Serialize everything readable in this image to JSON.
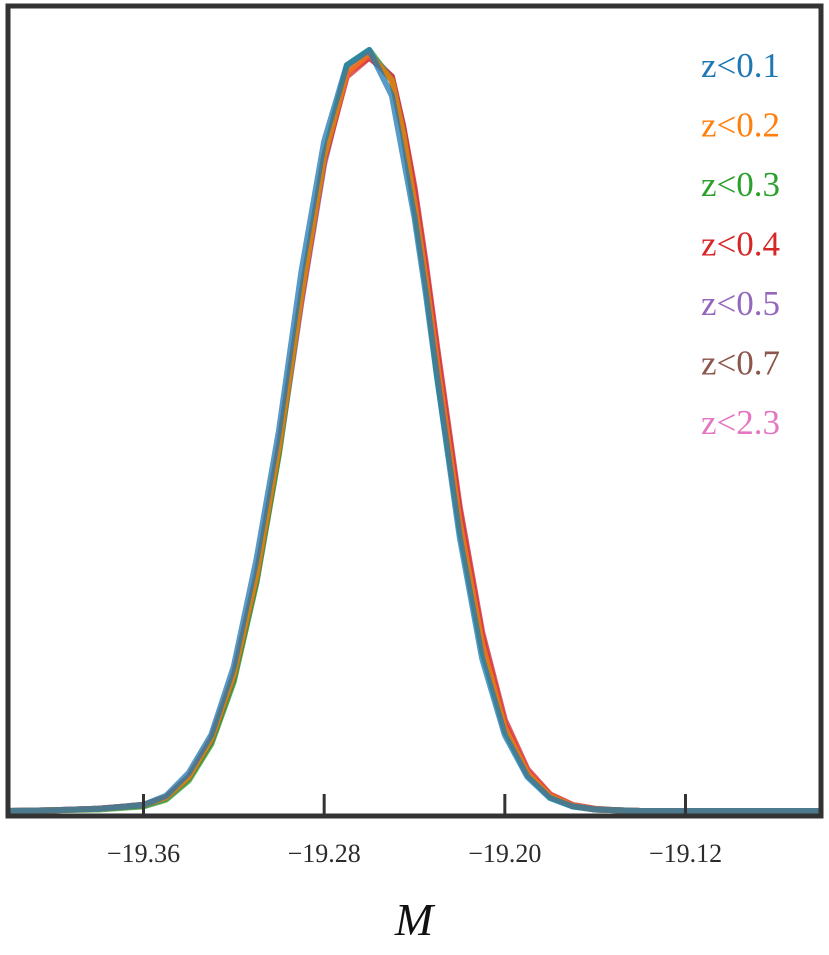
{
  "chart_data": {
    "type": "line",
    "title": "",
    "xlabel": "M",
    "ylabel": "",
    "xlim": [
      -19.42,
      -19.06
    ],
    "ylim": [
      0,
      1.05
    ],
    "xticks": [
      -19.36,
      -19.28,
      -19.2,
      -19.12
    ],
    "xtick_labels": [
      "−19.36",
      "−19.28",
      "−19.20",
      "−19.12"
    ],
    "grid": false,
    "legend_position": "top-right",
    "x": [
      -19.42,
      -19.4,
      -19.38,
      -19.36,
      -19.35,
      -19.34,
      -19.33,
      -19.32,
      -19.31,
      -19.3,
      -19.29,
      -19.28,
      -19.27,
      -19.26,
      -19.25,
      -19.245,
      -19.24,
      -19.235,
      -19.23,
      -19.22,
      -19.21,
      -19.2,
      -19.19,
      -19.18,
      -19.17,
      -19.16,
      -19.15,
      -19.14,
      -19.12,
      -19.1,
      -19.08,
      -19.06
    ],
    "series": [
      {
        "name": "z<0.1",
        "color": "#1f77b4",
        "values": [
          0,
          0.001,
          0.003,
          0.008,
          0.02,
          0.05,
          0.1,
          0.19,
          0.33,
          0.5,
          0.71,
          0.88,
          0.98,
          1.0,
          0.94,
          0.86,
          0.78,
          0.68,
          0.57,
          0.36,
          0.2,
          0.1,
          0.045,
          0.017,
          0.006,
          0.002,
          0.001,
          0,
          0,
          0,
          0,
          0
        ]
      },
      {
        "name": "z<0.2",
        "color": "#ff7f0e",
        "values": [
          0,
          0.001,
          0.003,
          0.008,
          0.018,
          0.045,
          0.095,
          0.18,
          0.31,
          0.48,
          0.68,
          0.86,
          0.97,
          0.995,
          0.96,
          0.89,
          0.8,
          0.7,
          0.59,
          0.38,
          0.22,
          0.11,
          0.05,
          0.02,
          0.007,
          0.002,
          0.001,
          0,
          0,
          0,
          0,
          0
        ]
      },
      {
        "name": "z<0.3",
        "color": "#2ca02c",
        "values": [
          0,
          0.001,
          0.002,
          0.006,
          0.015,
          0.04,
          0.088,
          0.17,
          0.3,
          0.47,
          0.68,
          0.86,
          0.98,
          1.0,
          0.96,
          0.89,
          0.79,
          0.69,
          0.57,
          0.37,
          0.21,
          0.105,
          0.047,
          0.018,
          0.006,
          0.002,
          0.001,
          0,
          0,
          0,
          0,
          0
        ]
      },
      {
        "name": "z<0.4",
        "color": "#d62728",
        "values": [
          0,
          0.001,
          0.003,
          0.008,
          0.018,
          0.044,
          0.092,
          0.176,
          0.305,
          0.475,
          0.675,
          0.855,
          0.965,
          0.99,
          0.965,
          0.9,
          0.82,
          0.72,
          0.61,
          0.4,
          0.235,
          0.12,
          0.055,
          0.022,
          0.008,
          0.003,
          0.001,
          0,
          0,
          0,
          0,
          0
        ]
      },
      {
        "name": "z<0.5",
        "color": "#9467bd",
        "values": [
          0,
          0.001,
          0.003,
          0.007,
          0.016,
          0.042,
          0.09,
          0.172,
          0.3,
          0.47,
          0.67,
          0.85,
          0.97,
          0.995,
          0.965,
          0.9,
          0.81,
          0.71,
          0.6,
          0.39,
          0.225,
          0.112,
          0.05,
          0.02,
          0.007,
          0.002,
          0.001,
          0,
          0,
          0,
          0,
          0
        ]
      },
      {
        "name": "z<0.7",
        "color": "#8c564b",
        "values": [
          0,
          0.001,
          0.003,
          0.008,
          0.018,
          0.045,
          0.094,
          0.178,
          0.31,
          0.48,
          0.68,
          0.86,
          0.97,
          0.995,
          0.96,
          0.89,
          0.8,
          0.7,
          0.59,
          0.38,
          0.22,
          0.11,
          0.05,
          0.02,
          0.007,
          0.002,
          0.001,
          0,
          0,
          0,
          0,
          0
        ]
      },
      {
        "name": "z<2.3",
        "color": "#e377c2",
        "values": [
          0,
          0.001,
          0.003,
          0.007,
          0.017,
          0.043,
          0.092,
          0.175,
          0.305,
          0.475,
          0.675,
          0.855,
          0.97,
          0.99,
          0.965,
          0.9,
          0.815,
          0.715,
          0.605,
          0.395,
          0.23,
          0.115,
          0.052,
          0.021,
          0.007,
          0.002,
          0.001,
          0,
          0,
          0,
          0,
          0
        ]
      }
    ]
  }
}
